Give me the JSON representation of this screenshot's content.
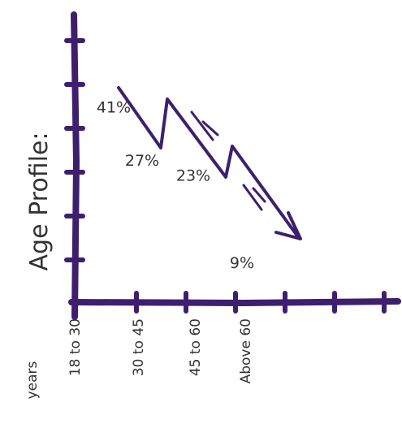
{
  "chart_data": {
    "type": "line",
    "ylabel": "Age Profile:",
    "xlabel": "years",
    "categories": [
      "18 to 30",
      "30 to 45",
      "45 to 60",
      "Above 60"
    ],
    "values": [
      41,
      27,
      23,
      9
    ],
    "data_labels": [
      "41%",
      "27%",
      "23%",
      "9%"
    ],
    "y_ticks": 6,
    "x_ticks": 7,
    "grid": false,
    "legend": "none",
    "colors": {
      "axis": "#3d1f6e",
      "line": "#3d1f6e",
      "text": "#333333"
    }
  }
}
